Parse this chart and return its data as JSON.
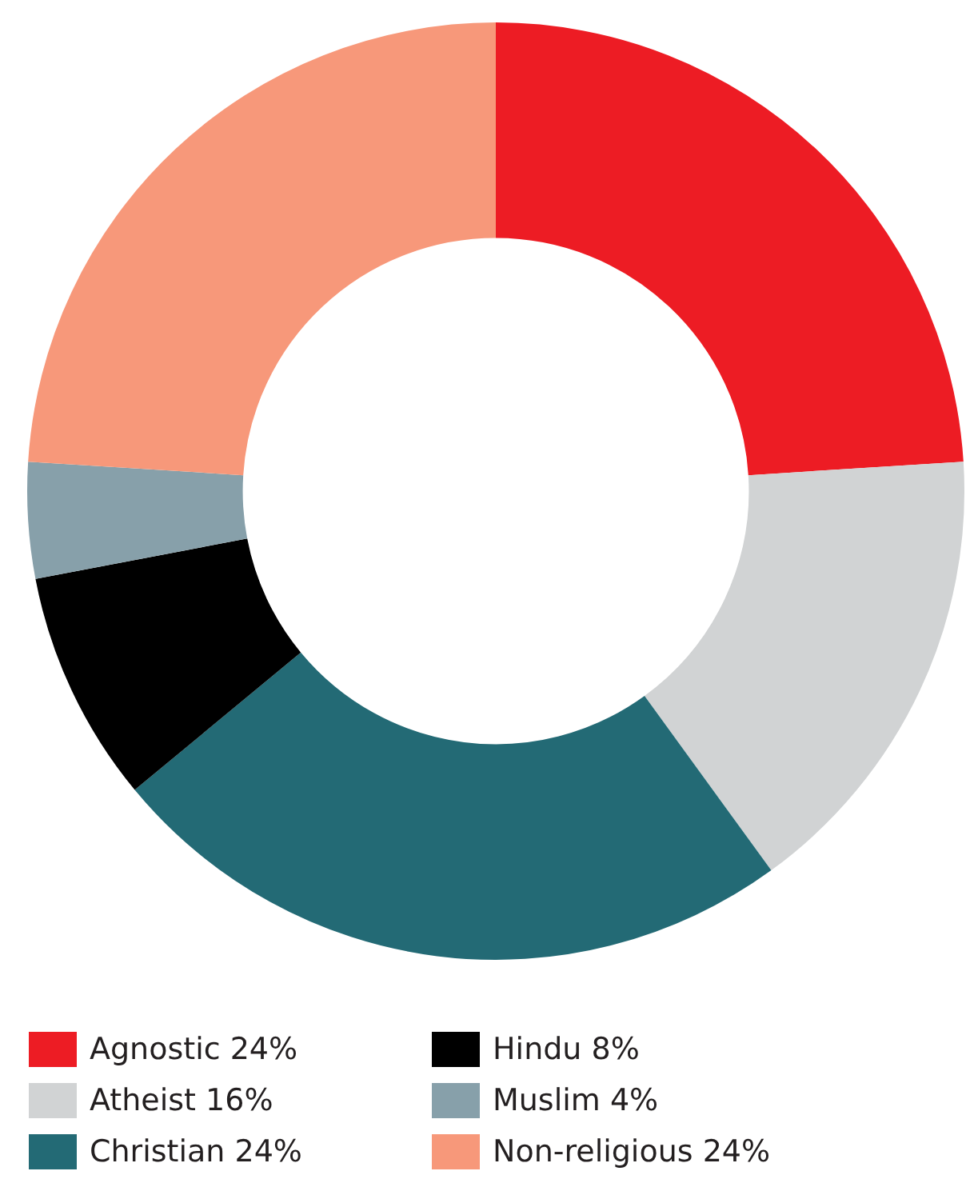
{
  "chart_data": {
    "type": "donut",
    "categories": [
      "Agnostic 24%",
      "Atheist 16%",
      "Christian 24%",
      "Hindu 8%",
      "Muslim 4%",
      "Non-religious 24%"
    ],
    "values": [
      24,
      16,
      24,
      8,
      4,
      24
    ],
    "colors": [
      "#ed1c24",
      "#d1d3d4",
      "#236a75",
      "#000000",
      "#87a0aa",
      "#f7987a"
    ],
    "legend": "bottom"
  }
}
